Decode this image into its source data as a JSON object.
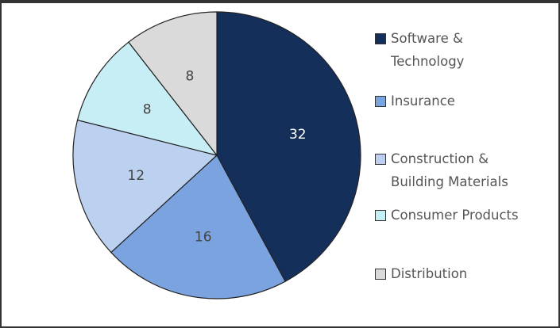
{
  "chart_data": {
    "type": "pie",
    "categories": [
      "Software & Technology",
      "Insurance",
      "Construction & Building Materials",
      "Consumer Products",
      "Distribution"
    ],
    "values": [
      32,
      16,
      12,
      8,
      8
    ],
    "colors": [
      "#142f5a",
      "#7ba3e0",
      "#bcd0f0",
      "#c8eef5",
      "#dadada"
    ],
    "legend": "right"
  }
}
